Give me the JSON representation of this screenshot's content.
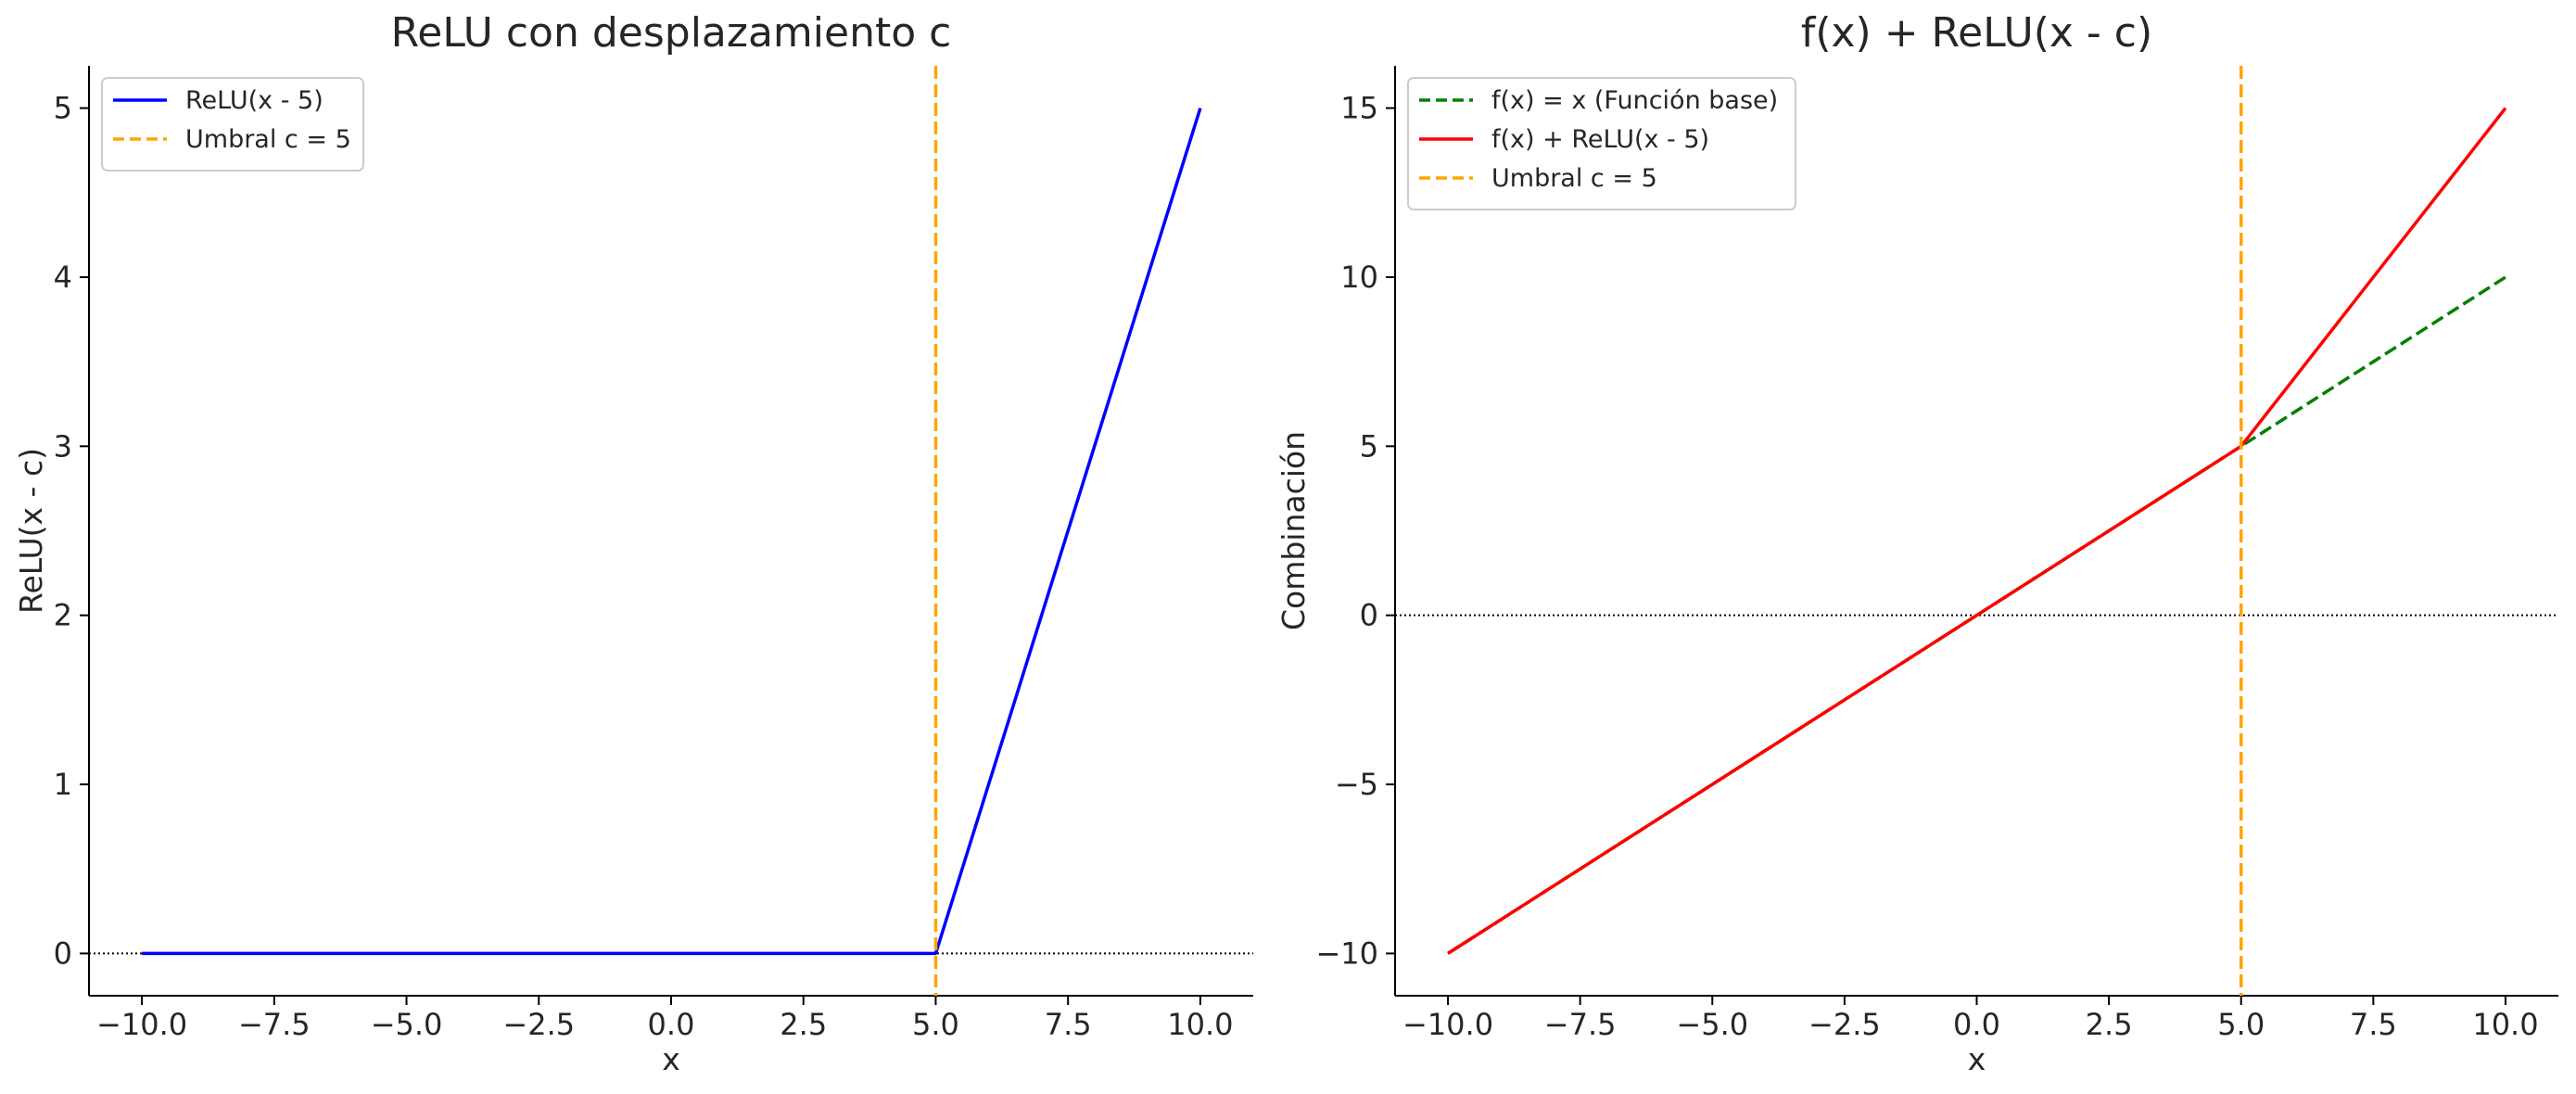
{
  "chart_data": [
    {
      "type": "line",
      "title": "ReLU con desplazamiento c",
      "xlabel": "x",
      "ylabel": "ReLU(x - c)",
      "xlim": [
        -11.0,
        11.0
      ],
      "ylim": [
        -0.25,
        5.25
      ],
      "xticks": [
        -10,
        -7.5,
        -5,
        -2.5,
        0,
        2.5,
        5,
        7.5,
        10
      ],
      "xtick_labels": [
        "−10.0",
        "−7.5",
        "−5.0",
        "−2.5",
        "0.0",
        "2.5",
        "5.0",
        "7.5",
        "10.0"
      ],
      "yticks": [
        0,
        1,
        2,
        3,
        4,
        5
      ],
      "ytick_labels": [
        "0",
        "1",
        "2",
        "3",
        "4",
        "5"
      ],
      "grid": false,
      "legend_position": "top-left",
      "hline": {
        "y": 0,
        "style": "dotted",
        "color": "#000000"
      },
      "vline": {
        "x": 5,
        "name": "Umbral c = 5",
        "style": "dashed",
        "color": "#FFA500"
      },
      "series": [
        {
          "name": "ReLU(x - 5)",
          "style": "solid",
          "color": "#0000FF",
          "x": [
            -10,
            5,
            10
          ],
          "y": [
            0,
            0,
            5
          ]
        }
      ]
    },
    {
      "type": "line",
      "title": "f(x) + ReLU(x - c)",
      "xlabel": "x",
      "ylabel": "Combinación",
      "xlim": [
        -11.0,
        11.0
      ],
      "ylim": [
        -11.25,
        16.25
      ],
      "xticks": [
        -10,
        -7.5,
        -5,
        -2.5,
        0,
        2.5,
        5,
        7.5,
        10
      ],
      "xtick_labels": [
        "−10.0",
        "−7.5",
        "−5.0",
        "−2.5",
        "0.0",
        "2.5",
        "5.0",
        "7.5",
        "10.0"
      ],
      "yticks": [
        -10,
        -5,
        0,
        5,
        10,
        15
      ],
      "ytick_labels": [
        "−10",
        "−5",
        "0",
        "5",
        "10",
        "15"
      ],
      "grid": false,
      "legend_position": "top-left",
      "hline": {
        "y": 0,
        "style": "dotted",
        "color": "#000000"
      },
      "vline": {
        "x": 5,
        "name": "Umbral c = 5",
        "style": "dashed",
        "color": "#FFA500"
      },
      "series": [
        {
          "name": "f(x) = x (Función base)",
          "style": "dashed",
          "color": "#008000",
          "x": [
            -10,
            10
          ],
          "y": [
            -10,
            10
          ]
        },
        {
          "name": "f(x) + ReLU(x - 5)",
          "style": "solid",
          "color": "#FF0000",
          "x": [
            -10,
            5,
            10
          ],
          "y": [
            -10,
            5,
            15
          ]
        }
      ]
    }
  ]
}
